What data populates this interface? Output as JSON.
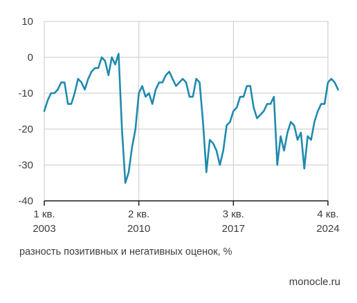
{
  "caption": "разность позитивных и негативных оценок, %",
  "source": "monocle.ru",
  "colors": {
    "line": "#1f8aad",
    "grid": "#c9c9c9",
    "axis": "#1a1a1a",
    "text": "#3c3c3c"
  },
  "chart_data": {
    "type": "line",
    "title": "",
    "xlabel": "",
    "ylabel": "разность позитивных и негативных оценок, %",
    "ylim": [
      -40,
      10
    ],
    "yticks": [
      10,
      0,
      -10,
      -20,
      -30,
      -40
    ],
    "grid": true,
    "xticks": [
      {
        "x": 0,
        "line1": "1 кв.",
        "line2": "2003"
      },
      {
        "x": 28,
        "line1": "2 кв.",
        "line2": "2010"
      },
      {
        "x": 56,
        "line1": "3 кв.",
        "line2": "2017"
      },
      {
        "x": 84,
        "line1": "4 кв.",
        "line2": "2024"
      }
    ],
    "xlim": [
      0,
      84
    ],
    "series": [
      {
        "values": [
          -15,
          -12,
          -10,
          -10,
          -9,
          -7,
          -7,
          -13,
          -13,
          -10,
          -6,
          -7,
          -9,
          -6,
          -4,
          -3,
          -3,
          0,
          -1,
          -5,
          0,
          -2,
          1,
          -20,
          -35,
          -32,
          -25,
          -20,
          -10,
          -8,
          -11,
          -10,
          -13,
          -9,
          -7,
          -7,
          -5,
          -4,
          -6,
          -8,
          -7,
          -6,
          -7,
          -11,
          -11,
          -6,
          -7,
          -18,
          -32,
          -23,
          -24,
          -26,
          -30,
          -26,
          -19,
          -18,
          -15,
          -14,
          -11,
          -11,
          -8,
          -8,
          -14,
          -17,
          -16,
          -15,
          -13,
          -13,
          -11,
          -30,
          -22,
          -26,
          -21,
          -18,
          -19,
          -23,
          -21,
          -31,
          -22,
          -23,
          -18,
          -15,
          -13,
          -13,
          -7,
          -6,
          -7,
          -9
        ]
      }
    ]
  }
}
